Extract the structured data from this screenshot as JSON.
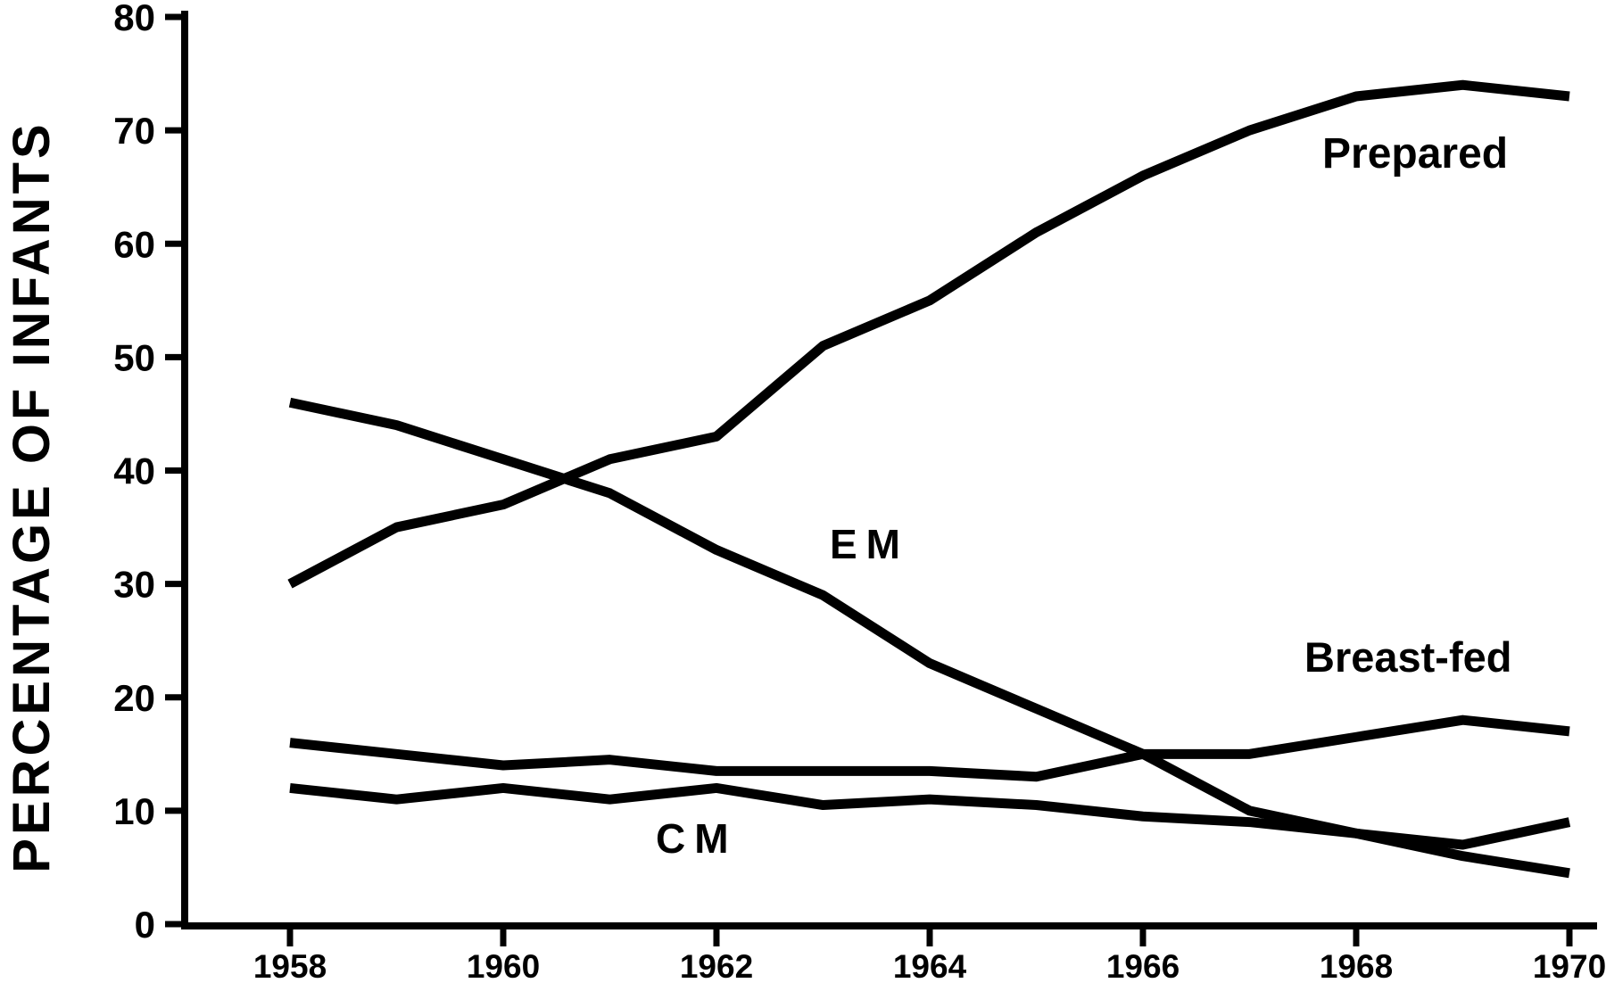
{
  "colors": {
    "background": "#ffffff",
    "line": "#000000",
    "text": "#000000"
  },
  "chart_data": {
    "type": "line",
    "title": "",
    "xlabel": "",
    "ylabel": "PERCENTAGE OF INFANTS",
    "ylim": [
      0,
      80
    ],
    "yticks": [
      0,
      10,
      20,
      30,
      40,
      50,
      60,
      70,
      80
    ],
    "x": [
      1958,
      1959,
      1960,
      1961,
      1962,
      1963,
      1964,
      1965,
      1966,
      1967,
      1968,
      1969,
      1970
    ],
    "xticks": [
      1958,
      1960,
      1962,
      1964,
      1966,
      1968,
      1970
    ],
    "grid": false,
    "legend_position": "inline-labels-on-plot",
    "series": [
      {
        "name": "Prepared",
        "values": [
          30,
          35,
          37,
          41,
          43,
          51,
          55,
          61,
          66,
          70,
          73,
          74,
          73
        ]
      },
      {
        "name": "EM",
        "values": [
          46,
          44,
          41,
          38,
          33,
          29,
          23,
          19,
          15,
          10,
          8,
          6,
          4.5
        ]
      },
      {
        "name": "Breast-fed",
        "values": [
          16,
          15,
          14,
          14.5,
          13.5,
          13.5,
          13.5,
          13,
          15,
          15,
          16.5,
          18,
          17
        ]
      },
      {
        "name": "CM",
        "values": [
          12,
          11,
          12,
          11,
          12,
          10.5,
          11,
          10.5,
          9.5,
          9,
          8,
          7,
          9
        ]
      }
    ]
  }
}
